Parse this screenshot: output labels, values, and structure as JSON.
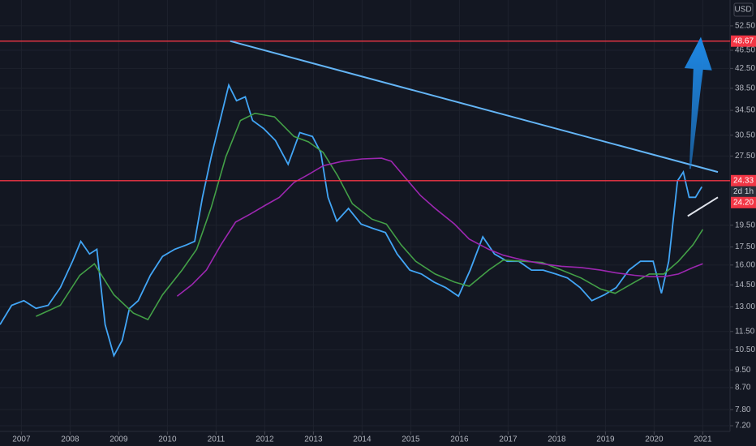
{
  "chart_data": {
    "type": "line",
    "currency": "USD",
    "log_scale": true,
    "grid": true,
    "xlim": [
      2006.56,
      2021.56
    ],
    "xticks": [
      2007,
      2008,
      2009,
      2010,
      2011,
      2012,
      2013,
      2014,
      2015,
      2016,
      2017,
      2018,
      2019,
      2020,
      2021
    ],
    "ylim": [
      7.0,
      59.7
    ],
    "yticks": [
      {
        "value": 52.5,
        "label": "52.50"
      },
      {
        "value": 46.5,
        "label": "46.50"
      },
      {
        "value": 42.5,
        "label": "42.50"
      },
      {
        "value": 38.5,
        "label": "38.50"
      },
      {
        "value": 34.5,
        "label": "34.50"
      },
      {
        "value": 30.5,
        "label": "30.50"
      },
      {
        "value": 27.5,
        "label": "27.50"
      },
      {
        "value": 19.5,
        "label": "19.50"
      },
      {
        "value": 17.5,
        "label": "17.50"
      },
      {
        "value": 16,
        "label": "16.00"
      },
      {
        "value": 14.5,
        "label": "14.50"
      },
      {
        "value": 13,
        "label": "13.00"
      },
      {
        "value": 11.5,
        "label": "11.50"
      },
      {
        "value": 10.5,
        "label": "10.50"
      },
      {
        "value": 9.5,
        "label": "9.50"
      },
      {
        "value": 8.7,
        "label": "8.70"
      },
      {
        "value": 7.8,
        "label": "7.80"
      },
      {
        "value": 7.2,
        "label": "7.20"
      }
    ],
    "series": [
      {
        "color": "#42a5f5",
        "x": [
          2006.56,
          2006.8,
          2007.05,
          2007.3,
          2007.55,
          2007.8,
          2008.05,
          2008.22,
          2008.4,
          2008.55,
          2008.72,
          2008.9,
          2009.07,
          2009.22,
          2009.4,
          2009.65,
          2009.9,
          2010.15,
          2010.4,
          2010.56,
          2010.72,
          2010.9,
          2011.1,
          2011.26,
          2011.42,
          2011.6,
          2011.75,
          2011.98,
          2012.22,
          2012.48,
          2012.72,
          2012.98,
          2013.15,
          2013.3,
          2013.48,
          2013.72,
          2013.98,
          2014.22,
          2014.48,
          2014.72,
          2014.98,
          2015.22,
          2015.48,
          2015.72,
          2015.98,
          2016.22,
          2016.48,
          2016.72,
          2016.98,
          2017.22,
          2017.48,
          2017.72,
          2017.98,
          2018.22,
          2018.48,
          2018.72,
          2018.98,
          2019.22,
          2019.48,
          2019.72,
          2019.98,
          2020.15,
          2020.3,
          2020.48,
          2020.6,
          2020.72,
          2020.85,
          2020.98
        ],
        "values": [
          11.9,
          13.1,
          13.4,
          12.9,
          13.1,
          14.3,
          16.3,
          18.0,
          16.9,
          17.3,
          11.9,
          10.2,
          11.0,
          12.9,
          13.4,
          15.2,
          16.7,
          17.3,
          17.7,
          18.0,
          22.4,
          27.4,
          33.4,
          39.1,
          36.2,
          36.9,
          32.8,
          31.5,
          29.7,
          26.4,
          30.9,
          30.3,
          28.0,
          22.4,
          19.9,
          21.2,
          19.6,
          19.2,
          18.8,
          16.9,
          15.6,
          15.3,
          14.7,
          14.3,
          13.7,
          15.6,
          18.4,
          16.9,
          16.3,
          16.3,
          15.6,
          15.6,
          15.3,
          15.0,
          14.3,
          13.4,
          13.8,
          14.3,
          15.6,
          16.3,
          16.3,
          13.9,
          16.3,
          24.3,
          25.4,
          22.4,
          22.4,
          23.6
        ]
      },
      {
        "color": "#43a047",
        "x": [
          2007.3,
          2007.8,
          2008.2,
          2008.5,
          2008.9,
          2009.3,
          2009.6,
          2009.9,
          2010.3,
          2010.6,
          2010.9,
          2011.2,
          2011.5,
          2011.8,
          2012.2,
          2012.6,
          2012.9,
          2013.2,
          2013.5,
          2013.8,
          2014.2,
          2014.5,
          2014.8,
          2015.1,
          2015.5,
          2015.9,
          2016.2,
          2016.6,
          2016.9,
          2017.3,
          2017.7,
          2018.1,
          2018.5,
          2018.9,
          2019.2,
          2019.6,
          2019.9,
          2020.2,
          2020.5,
          2020.8,
          2021.0
        ],
        "values": [
          12.4,
          13.1,
          15.2,
          16.1,
          13.8,
          12.6,
          12.2,
          13.8,
          15.6,
          17.3,
          21.3,
          27.4,
          32.8,
          34.0,
          33.4,
          30.3,
          29.5,
          28.0,
          24.9,
          21.7,
          20.1,
          19.6,
          17.7,
          16.3,
          15.3,
          14.7,
          14.4,
          15.6,
          16.4,
          16.3,
          16.2,
          15.6,
          15.0,
          14.2,
          13.9,
          14.7,
          15.3,
          15.3,
          16.3,
          17.7,
          19.1
        ]
      },
      {
        "color": "#9c27b0",
        "x": [
          2010.2,
          2010.5,
          2010.8,
          2011.1,
          2011.4,
          2011.7,
          2012.0,
          2012.3,
          2012.6,
          2012.9,
          2013.2,
          2013.6,
          2014.0,
          2014.4,
          2014.6,
          2014.9,
          2015.2,
          2015.5,
          2015.9,
          2016.2,
          2016.6,
          2016.9,
          2017.3,
          2017.7,
          2018.1,
          2018.5,
          2018.9,
          2019.2,
          2019.6,
          2019.9,
          2020.2,
          2020.5,
          2020.8,
          2021.0
        ],
        "values": [
          13.7,
          14.5,
          15.6,
          17.7,
          19.8,
          20.6,
          21.5,
          22.4,
          24.1,
          25.1,
          26.2,
          26.8,
          27.1,
          27.2,
          26.8,
          24.6,
          22.6,
          21.2,
          19.6,
          18.2,
          17.3,
          16.8,
          16.4,
          16.1,
          15.9,
          15.8,
          15.6,
          15.4,
          15.2,
          15.1,
          15.1,
          15.3,
          15.8,
          16.1
        ]
      }
    ],
    "hlines": [
      48.67,
      24.33
    ],
    "hline_color": "#f23645",
    "last_price": {
      "value": 24.2,
      "label": "24.20"
    },
    "countdown": "2d 1h",
    "trendlines": [
      {
        "x": [
          2011.29,
          2021.31
        ],
        "y": [
          48.67,
          25.4
        ],
        "color": "#64b5f6"
      },
      {
        "x": [
          2020.69,
          2021.31
        ],
        "y": [
          20.4,
          22.4
        ],
        "color": "#e0e3eb"
      }
    ],
    "arrow": {
      "x": [
        2020.74,
        2020.96
      ],
      "y": [
        25.8,
        49.7
      ],
      "color": "#1e88e5"
    }
  }
}
